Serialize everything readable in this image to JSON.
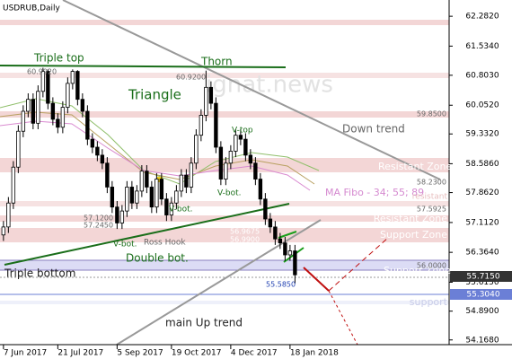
{
  "chart_data": {
    "type": "candlestick",
    "title": "USDRUB,Daily",
    "open": [
      56.8,
      57.0,
      57.6,
      58.5,
      59.4,
      59.9,
      60.2,
      59.6,
      60.4,
      60.9,
      60.1,
      59.7,
      59.5,
      60.0,
      60.6,
      60.9,
      60.2,
      59.9,
      59.2,
      59.0,
      58.8,
      58.6,
      58.0,
      57.5,
      57.1,
      57.4,
      58.0,
      57.6,
      57.9,
      58.4,
      58.0,
      57.5,
      58.2,
      57.7,
      57.3,
      57.6,
      57.9,
      58.3,
      58.0,
      58.6,
      59.3,
      59.8,
      60.5,
      60.1,
      59.0,
      58.2,
      58.6,
      58.9,
      59.3,
      59.2,
      58.8,
      58.6,
      58.2,
      57.7,
      57.2,
      57.0,
      56.7,
      56.6,
      56.3,
      56.4
    ],
    "high": [
      57.15,
      57.75,
      58.65,
      59.55,
      60.05,
      60.35,
      60.35,
      60.55,
      60.99,
      60.95,
      60.25,
      59.85,
      60.15,
      60.75,
      60.95,
      60.93,
      60.35,
      60.05,
      59.35,
      59.15,
      58.95,
      58.75,
      58.15,
      57.65,
      57.55,
      58.15,
      58.15,
      58.05,
      58.55,
      58.55,
      58.15,
      58.35,
      58.35,
      57.85,
      57.75,
      58.05,
      58.45,
      58.45,
      58.75,
      59.45,
      59.95,
      60.92,
      60.65,
      60.25,
      59.15,
      58.75,
      59.05,
      59.45,
      59.45,
      59.35,
      58.95,
      58.75,
      58.35,
      57.85,
      57.35,
      57.15,
      56.85,
      56.75,
      56.55,
      56.55
    ],
    "low": [
      56.65,
      56.85,
      57.45,
      58.35,
      59.25,
      59.75,
      59.45,
      59.45,
      60.25,
      59.95,
      59.55,
      59.35,
      59.35,
      59.85,
      60.45,
      60.05,
      59.75,
      59.05,
      58.85,
      58.65,
      58.45,
      57.85,
      57.35,
      56.95,
      56.95,
      57.25,
      57.45,
      57.45,
      57.75,
      57.85,
      57.35,
      57.35,
      57.55,
      57.15,
      57.15,
      57.45,
      57.75,
      57.85,
      57.85,
      58.45,
      59.15,
      59.65,
      59.95,
      58.85,
      58.05,
      58.05,
      58.45,
      58.75,
      59.05,
      58.65,
      58.45,
      58.05,
      57.55,
      57.05,
      56.85,
      56.55,
      56.45,
      56.15,
      56.15,
      55.585
    ],
    "close": [
      57.0,
      57.6,
      58.5,
      59.4,
      59.9,
      60.2,
      59.6,
      60.4,
      60.9,
      60.1,
      59.7,
      59.5,
      60.0,
      60.6,
      60.9,
      60.2,
      59.9,
      59.2,
      59.0,
      58.8,
      58.6,
      58.0,
      57.5,
      57.1,
      57.4,
      58.0,
      57.6,
      57.9,
      58.4,
      58.0,
      57.5,
      58.2,
      57.7,
      57.3,
      57.6,
      57.9,
      58.3,
      58.0,
      58.6,
      59.3,
      59.8,
      60.5,
      60.1,
      59.0,
      58.2,
      58.6,
      58.9,
      59.3,
      59.2,
      58.8,
      58.6,
      58.2,
      57.7,
      57.2,
      57.0,
      56.7,
      56.6,
      56.3,
      56.4,
      55.8
    ],
    "xlim": [
      -0.7,
      90.2
    ],
    "xticks": [
      {
        "value": 0,
        "label": "7 Jun 2017"
      },
      {
        "value": 11,
        "label": "21 Jul 2017"
      },
      {
        "value": 23,
        "label": "5 Sep 2017"
      },
      {
        "value": 34,
        "label": "19 Oct 2017"
      },
      {
        "value": 46,
        "label": "4 Dec 2017"
      },
      {
        "value": 58,
        "label": "18 Jan 2018"
      }
    ],
    "ylim": [
      54.05,
      62.69
    ],
    "yticks": [
      {
        "value": 62.282,
        "label": "62.2820"
      },
      {
        "value": 61.534,
        "label": "61.5340"
      },
      {
        "value": 60.803,
        "label": "60.8030"
      },
      {
        "value": 60.052,
        "label": "60.0520"
      },
      {
        "value": 59.332,
        "label": "59.3320"
      },
      {
        "value": 58.586,
        "label": "58.5860"
      },
      {
        "value": 57.862,
        "label": "57.8620"
      },
      {
        "value": 57.112,
        "label": "57.1120"
      },
      {
        "value": 56.364,
        "label": "56.3640"
      },
      {
        "value": 55.615,
        "label": "55.6150"
      },
      {
        "value": 54.89,
        "label": "54.8900"
      },
      {
        "value": 54.168,
        "label": "54.1680"
      }
    ],
    "annotations": [
      "Triple top",
      "Thorn",
      "60.9920",
      "60.9200",
      "Triangle",
      "V-top",
      "V-bot.",
      "V-bot.",
      "V-bot.",
      "Down trend",
      "Resistant Zone",
      "MA Fibo - 34; 55; 89",
      "resistant",
      "Resistant Zone",
      "Support Zone",
      "Support Zone",
      "support",
      "Triple bottom",
      "Double bot.",
      "Ross Hook",
      "main Up trend",
      "55.5850",
      "57.1200",
      "57.2450",
      "56.9675",
      "56.9900",
      "59.8500",
      "57.5925",
      "58.2300",
      "56.0000",
      "55.7150",
      "55.3040",
      "ignat.news"
    ]
  }
}
